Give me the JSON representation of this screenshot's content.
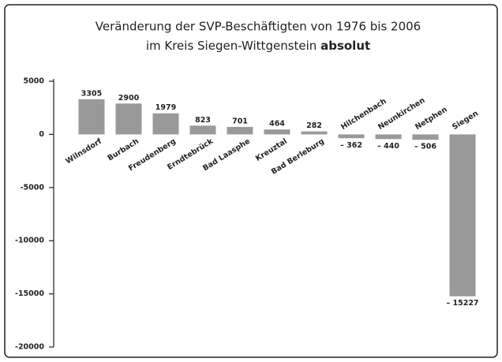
{
  "chart_data": {
    "type": "bar",
    "title": [
      "Veränderung der SVP-Beschäftigten von 1976 bis 2006",
      "im Kreis Siegen-Wittgenstein"
    ],
    "title_emphasis": "absolut",
    "categories": [
      "Wilnsdorf",
      "Burbach",
      "Freudenberg",
      "Erndtebrück",
      "Bad Laasphe",
      "Kreuztal",
      "Bad Berleburg",
      "Hilchenbach",
      "Neunkirchen",
      "Netphen",
      "Siegen"
    ],
    "values": [
      3305,
      2900,
      1979,
      823,
      701,
      464,
      282,
      -362,
      -440,
      -506,
      -15227
    ],
    "value_labels": [
      "3305",
      "2900",
      "1979",
      "823",
      "701",
      "464",
      "282",
      "– 362",
      "– 440",
      "– 506",
      "– 15227"
    ],
    "color": "#999999",
    "ylim": [
      -20000,
      5000
    ],
    "yticks": [
      5000,
      0,
      -5000,
      -10000,
      -15000,
      -20000
    ],
    "grid": false
  }
}
